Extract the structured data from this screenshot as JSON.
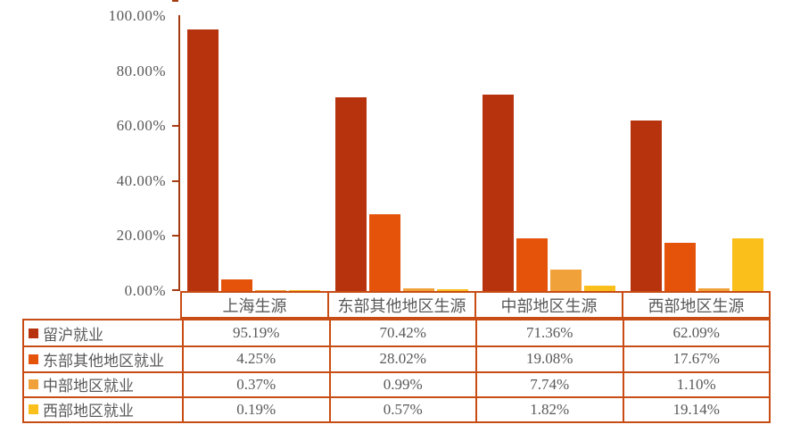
{
  "chart_data": {
    "type": "bar",
    "title": "",
    "categories": [
      "上海生源",
      "东部其他地区生源",
      "中部地区生源",
      "西部地区生源"
    ],
    "series": [
      {
        "name": "留沪就业",
        "color": "#B7330E",
        "values": [
          95.19,
          70.42,
          71.36,
          62.09
        ]
      },
      {
        "name": "东部其他地区就业",
        "color": "#E5530A",
        "values": [
          4.25,
          28.02,
          19.08,
          17.67
        ]
      },
      {
        "name": "中部地区就业",
        "color": "#F1A13A",
        "values": [
          0.37,
          0.99,
          7.74,
          1.1
        ]
      },
      {
        "name": "西部地区就业",
        "color": "#FBBF1B",
        "values": [
          0.19,
          0.57,
          1.82,
          19.14
        ]
      }
    ],
    "y_tick_labels": [
      "100.00%",
      "80.00%",
      "60.00%",
      "40.00%",
      "20.00%",
      "0.00%"
    ],
    "xlabel": "",
    "ylabel": "",
    "ylim": [
      0,
      100
    ],
    "grid": false,
    "legend_position": "left column of data table below chart",
    "value_suffix": "%"
  },
  "table": {
    "headers": [
      "上海生源",
      "东部其他地区生源",
      "中部地区生源",
      "西部地区生源"
    ],
    "rows": [
      {
        "label": "留沪就业",
        "color": "#B7330E",
        "values": [
          "95.19%",
          "70.42%",
          "71.36%",
          "62.09%"
        ]
      },
      {
        "label": "东部其他地区就业",
        "color": "#E5530A",
        "values": [
          "4.25%",
          "28.02%",
          "19.08%",
          "17.67%"
        ]
      },
      {
        "label": "中部地区就业",
        "color": "#F1A13A",
        "values": [
          "0.37%",
          "0.99%",
          "7.74%",
          "1.10%"
        ]
      },
      {
        "label": "西部地区就业",
        "color": "#FBBF1B",
        "values": [
          "0.19%",
          "0.57%",
          "1.82%",
          "19.14%"
        ]
      }
    ]
  },
  "colors": {
    "axis": "#A63C12",
    "table_border": "#C84D15",
    "text": "#595959",
    "background": "#FFFFFF"
  }
}
